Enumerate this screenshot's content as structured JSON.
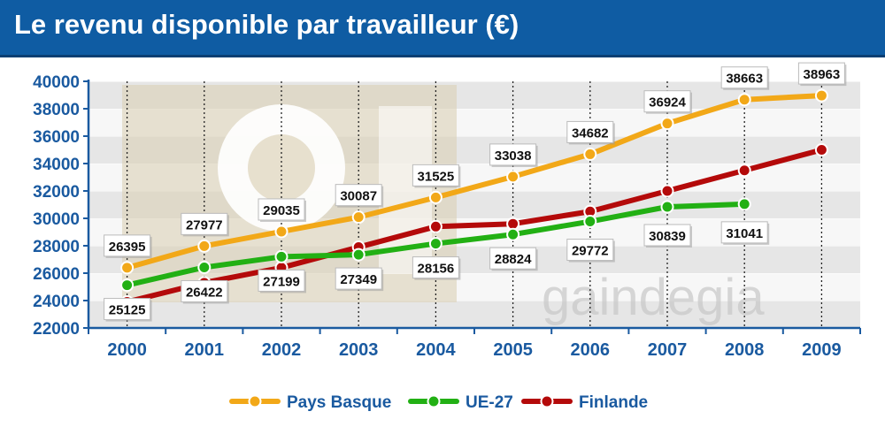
{
  "header": {
    "title": "Le revenu disponible par travailleur (€)"
  },
  "watermark": {
    "text": "gaindegia"
  },
  "colors": {
    "title_bar": "#0f5ca3",
    "axis_text": "#1a5aa0",
    "pays_basque": "#f2a818",
    "ue27": "#22b014",
    "finlande": "#b40a0a"
  },
  "chart_data": {
    "type": "line",
    "title": "Le revenu disponible par travailleur (€)",
    "categories": [
      "2000",
      "2001",
      "2002",
      "2003",
      "2004",
      "2005",
      "2006",
      "2007",
      "2008",
      "2009"
    ],
    "ylim": [
      22000,
      40000
    ],
    "yticks": [
      22000,
      24000,
      26000,
      28000,
      30000,
      32000,
      34000,
      36000,
      38000,
      40000
    ],
    "grid": true,
    "legend": "bottom",
    "series": [
      {
        "name": "Pays Basque",
        "color": "#f2a818",
        "values": [
          26395,
          27977,
          29035,
          30087,
          31525,
          33038,
          34682,
          36924,
          38663,
          38963
        ],
        "labels": [
          "26395",
          "27977",
          "29035",
          "30087",
          "31525",
          "33038",
          "34682",
          "36924",
          "38663",
          "38963"
        ]
      },
      {
        "name": "UE-27",
        "color": "#22b014",
        "values": [
          25125,
          26422,
          27199,
          27349,
          28156,
          28824,
          29772,
          30839,
          31041,
          null
        ],
        "labels": [
          "25125",
          "26422",
          "27199",
          "27349",
          "28156",
          "28824",
          "29772",
          "30839",
          "31041",
          null
        ]
      },
      {
        "name": "Finlande",
        "color": "#b40a0a",
        "values": [
          23900,
          25300,
          26400,
          27900,
          29400,
          29600,
          30500,
          32000,
          33500,
          35000
        ],
        "labels": []
      }
    ]
  }
}
